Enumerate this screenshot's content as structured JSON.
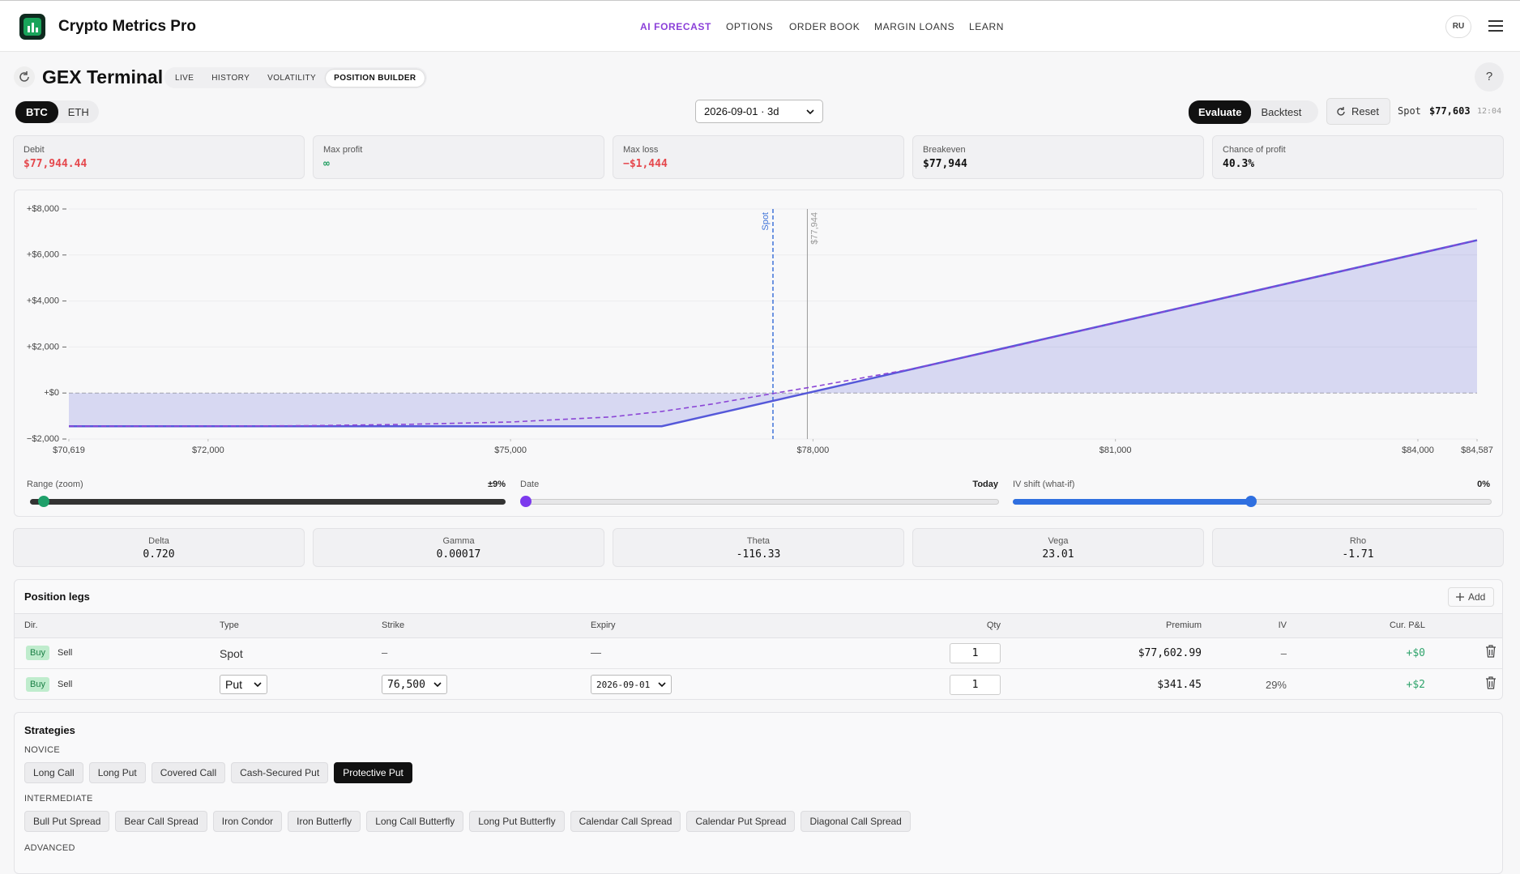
{
  "header": {
    "app_name": "Crypto Metrics Pro",
    "nav": [
      "AI FORECAST",
      "OPTIONS",
      "ORDER BOOK",
      "MARGIN LOANS",
      "LEARN"
    ],
    "language": "RU"
  },
  "terminal": {
    "title": "GEX Terminal",
    "tabs": [
      "LIVE",
      "HISTORY",
      "VOLATILITY",
      "POSITION BUILDER"
    ],
    "help": "?"
  },
  "toolbar": {
    "assets": [
      "BTC",
      "ETH"
    ],
    "expiry": "2026-09-01 · 3d",
    "modes": [
      "Evaluate",
      "Backtest"
    ],
    "reset": "Reset",
    "spot_label": "Spot",
    "spot_value": "$77,603",
    "spot_time": "12:04"
  },
  "summary": [
    {
      "label": "Debit",
      "value": "$77,944.44"
    },
    {
      "label": "Max profit",
      "value": "∞"
    },
    {
      "label": "Max loss",
      "value": "−$1,444"
    },
    {
      "label": "Breakeven",
      "value": "$77,944"
    },
    {
      "label": "Chance of profit",
      "value": "40.3%"
    }
  ],
  "chart_data": {
    "type": "line",
    "xlim": [
      70619,
      84587
    ],
    "ylim": [
      -2000,
      8000
    ],
    "xticks": [
      {
        "value": 70619,
        "label": "$70,619"
      },
      {
        "value": 72000,
        "label": "$72,000"
      },
      {
        "value": 75000,
        "label": "$75,000"
      },
      {
        "value": 78000,
        "label": "$78,000"
      },
      {
        "value": 81000,
        "label": "$81,000"
      },
      {
        "value": 84000,
        "label": "$84,000"
      },
      {
        "value": 84587,
        "label": "$84,587"
      }
    ],
    "yticks": [
      {
        "value": -2000,
        "label": "−$2,000"
      },
      {
        "value": 0,
        "label": "+$0"
      },
      {
        "value": 2000,
        "label": "+$2,000"
      },
      {
        "value": 4000,
        "label": "+$4,000"
      },
      {
        "value": 6000,
        "label": "+$6,000"
      },
      {
        "value": 8000,
        "label": "+$8,000"
      }
    ],
    "grid": true,
    "series": [
      {
        "color": "#5558d9",
        "fill": true,
        "x": [
          70619,
          76500,
          84587
        ],
        "values": [
          -1444.44,
          -1444.44,
          6642.56
        ]
      },
      {
        "color": "#8b46d6",
        "dashed": true,
        "x": [
          70619,
          72000,
          73000,
          74000,
          75000,
          76000,
          76500,
          77000,
          77603,
          78000,
          79000,
          80000,
          81000,
          82000,
          84587
        ],
        "values": [
          -1444,
          -1440,
          -1420,
          -1360,
          -1260,
          -1040,
          -800,
          -480,
          -20,
          270,
          1060,
          2030,
          3055,
          4055,
          6642
        ]
      }
    ],
    "annotations": [
      {
        "label": "Spot",
        "x": 77603,
        "color": "#3f73d9",
        "dashed": true
      },
      {
        "label": "$77,944",
        "x": 77944,
        "color": "#9a9a9a"
      }
    ]
  },
  "controls": [
    {
      "label": "Range (zoom)",
      "value": "±9%"
    },
    {
      "label": "Date",
      "value": "Today"
    },
    {
      "label": "IV shift (what-if)",
      "value": "0%"
    }
  ],
  "greeks": [
    {
      "label": "Delta",
      "value": "0.720"
    },
    {
      "label": "Gamma",
      "value": "0.00017"
    },
    {
      "label": "Theta",
      "value": "-116.33"
    },
    {
      "label": "Vega",
      "value": "23.01"
    },
    {
      "label": "Rho",
      "value": "-1.71"
    }
  ],
  "legs": {
    "title": "Position legs",
    "add": "Add",
    "columns": [
      "Dir.",
      "Type",
      "Strike",
      "Expiry",
      "Qty",
      "Premium",
      "IV",
      "Cur. P&L"
    ],
    "rows": [
      {
        "dir": [
          "Buy",
          "Sell"
        ],
        "type": "Spot",
        "strike": "–",
        "expiry": "—",
        "qty": "1",
        "premium": "$77,602.99",
        "iv": "–",
        "pnl": "+$0"
      },
      {
        "dir": [
          "Buy",
          "Sell"
        ],
        "type": "Put",
        "strike": "76,500",
        "expiry": "2026-09-01",
        "qty": "1",
        "premium": "$341.45",
        "iv": "29%",
        "pnl": "+$2"
      }
    ]
  },
  "strategies": {
    "title": "Strategies",
    "groups": [
      {
        "name": "NOVICE",
        "items": [
          "Long Call",
          "Long Put",
          "Covered Call",
          "Cash-Secured Put",
          "Protective Put"
        ]
      },
      {
        "name": "INTERMEDIATE",
        "items": [
          "Bull Put Spread",
          "Bear Call Spread",
          "Iron Condor",
          "Iron Butterfly",
          "Long Call Butterfly",
          "Long Put Butterfly",
          "Calendar Call Spread",
          "Calendar Put Spread",
          "Diagonal Call Spread"
        ]
      },
      {
        "name": "ADVANCED"
      }
    ]
  }
}
